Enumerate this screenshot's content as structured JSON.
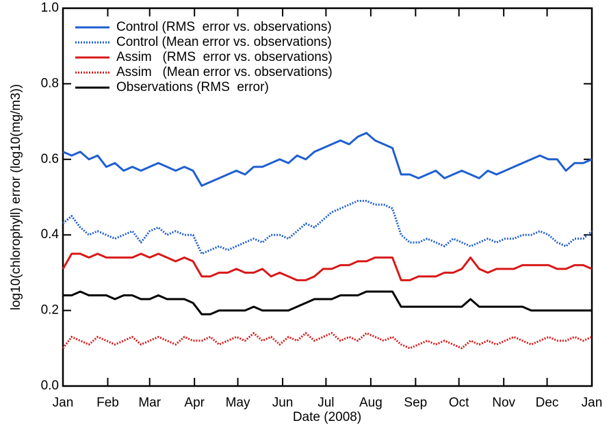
{
  "chart_data": {
    "type": "line",
    "xlabel": "Date (2008)",
    "ylabel": "log10(chlorophyll) error (log10(mg/m3))",
    "x": [
      0,
      6,
      12,
      18,
      24,
      30,
      36,
      42,
      48,
      54,
      60,
      66,
      72,
      78,
      84,
      90,
      96,
      102,
      108,
      114,
      120,
      126,
      132,
      138,
      144,
      150,
      156,
      162,
      168,
      174,
      180,
      186,
      192,
      198,
      204,
      210,
      216,
      222,
      228,
      234,
      240,
      246,
      252,
      258,
      264,
      270,
      276,
      282,
      288,
      294,
      300,
      306,
      312,
      318,
      324,
      330,
      336,
      342,
      348,
      354,
      360,
      366
    ],
    "xlim": [
      0,
      366
    ],
    "xticks": [
      {
        "value": 0,
        "label": "Jan"
      },
      {
        "value": 31,
        "label": "Feb"
      },
      {
        "value": 60,
        "label": "Mar"
      },
      {
        "value": 91,
        "label": "Apr"
      },
      {
        "value": 121,
        "label": "May"
      },
      {
        "value": 152,
        "label": "Jun"
      },
      {
        "value": 182,
        "label": "Jul"
      },
      {
        "value": 213,
        "label": "Aug"
      },
      {
        "value": 244,
        "label": "Sep"
      },
      {
        "value": 274,
        "label": "Oct"
      },
      {
        "value": 305,
        "label": "Nov"
      },
      {
        "value": 335,
        "label": "Dec"
      },
      {
        "value": 366,
        "label": "Jan"
      }
    ],
    "ylim": [
      0,
      1
    ],
    "yticks": [
      {
        "value": 0,
        "label": "0.0"
      },
      0.2,
      0.4,
      0.6,
      0.8,
      {
        "value": 1,
        "label": "1.0"
      }
    ],
    "series": [
      {
        "name": "Control (RMS  error vs. observations)",
        "color": "#1f5fd0",
        "style": "solid",
        "values": [
          0.62,
          0.61,
          0.62,
          0.6,
          0.61,
          0.58,
          0.59,
          0.57,
          0.58,
          0.57,
          0.58,
          0.59,
          0.58,
          0.57,
          0.58,
          0.57,
          0.53,
          0.54,
          0.55,
          0.56,
          0.57,
          0.56,
          0.58,
          0.58,
          0.59,
          0.6,
          0.59,
          0.61,
          0.6,
          0.62,
          0.63,
          0.64,
          0.65,
          0.64,
          0.66,
          0.67,
          0.65,
          0.64,
          0.63,
          0.56,
          0.56,
          0.55,
          0.56,
          0.57,
          0.55,
          0.56,
          0.57,
          0.56,
          0.55,
          0.57,
          0.56,
          0.57,
          0.58,
          0.59,
          0.6,
          0.61,
          0.6,
          0.6,
          0.57,
          0.59,
          0.59,
          0.6
        ]
      },
      {
        "name": "Control (Mean error vs. observations)",
        "color": "#1f5fd0",
        "style": "dotted",
        "values": [
          0.43,
          0.45,
          0.42,
          0.4,
          0.41,
          0.4,
          0.39,
          0.4,
          0.41,
          0.38,
          0.41,
          0.42,
          0.4,
          0.41,
          0.4,
          0.4,
          0.35,
          0.36,
          0.37,
          0.36,
          0.37,
          0.38,
          0.39,
          0.38,
          0.4,
          0.4,
          0.39,
          0.41,
          0.43,
          0.42,
          0.44,
          0.46,
          0.47,
          0.48,
          0.49,
          0.49,
          0.48,
          0.48,
          0.47,
          0.4,
          0.38,
          0.38,
          0.39,
          0.38,
          0.37,
          0.39,
          0.38,
          0.37,
          0.38,
          0.39,
          0.38,
          0.39,
          0.39,
          0.4,
          0.4,
          0.41,
          0.4,
          0.38,
          0.37,
          0.39,
          0.39,
          0.41
        ]
      },
      {
        "name": "Assim   (RMS  error vs. observations)",
        "color": "#d81818",
        "style": "solid",
        "values": [
          0.31,
          0.35,
          0.35,
          0.34,
          0.35,
          0.34,
          0.34,
          0.34,
          0.34,
          0.35,
          0.34,
          0.35,
          0.34,
          0.33,
          0.34,
          0.33,
          0.29,
          0.29,
          0.3,
          0.3,
          0.31,
          0.3,
          0.3,
          0.31,
          0.29,
          0.3,
          0.29,
          0.28,
          0.28,
          0.29,
          0.31,
          0.31,
          0.32,
          0.32,
          0.33,
          0.33,
          0.34,
          0.34,
          0.34,
          0.28,
          0.28,
          0.29,
          0.29,
          0.29,
          0.3,
          0.3,
          0.31,
          0.34,
          0.31,
          0.3,
          0.31,
          0.31,
          0.31,
          0.32,
          0.32,
          0.32,
          0.32,
          0.31,
          0.31,
          0.32,
          0.32,
          0.31
        ]
      },
      {
        "name": "Assim   (Mean error vs. observations)",
        "color": "#d81818",
        "style": "dotted",
        "values": [
          0.1,
          0.13,
          0.12,
          0.11,
          0.13,
          0.12,
          0.11,
          0.12,
          0.13,
          0.11,
          0.12,
          0.13,
          0.12,
          0.11,
          0.13,
          0.12,
          0.12,
          0.13,
          0.11,
          0.12,
          0.13,
          0.12,
          0.14,
          0.12,
          0.13,
          0.11,
          0.13,
          0.12,
          0.14,
          0.12,
          0.13,
          0.14,
          0.12,
          0.13,
          0.12,
          0.14,
          0.13,
          0.12,
          0.13,
          0.11,
          0.1,
          0.11,
          0.12,
          0.11,
          0.12,
          0.11,
          0.1,
          0.12,
          0.11,
          0.12,
          0.11,
          0.12,
          0.13,
          0.12,
          0.11,
          0.12,
          0.13,
          0.12,
          0.12,
          0.13,
          0.12,
          0.13
        ]
      },
      {
        "name": "Observations (RMS  error)",
        "color": "#000000",
        "style": "solid",
        "values": [
          0.24,
          0.24,
          0.25,
          0.24,
          0.24,
          0.24,
          0.23,
          0.24,
          0.24,
          0.23,
          0.23,
          0.24,
          0.23,
          0.23,
          0.23,
          0.22,
          0.19,
          0.19,
          0.2,
          0.2,
          0.2,
          0.2,
          0.21,
          0.2,
          0.2,
          0.2,
          0.2,
          0.21,
          0.22,
          0.23,
          0.23,
          0.23,
          0.24,
          0.24,
          0.24,
          0.25,
          0.25,
          0.25,
          0.25,
          0.21,
          0.21,
          0.21,
          0.21,
          0.21,
          0.21,
          0.21,
          0.21,
          0.23,
          0.21,
          0.21,
          0.21,
          0.21,
          0.21,
          0.21,
          0.2,
          0.2,
          0.2,
          0.2,
          0.2,
          0.2,
          0.2,
          0.2
        ]
      }
    ],
    "legend": "upper left"
  }
}
